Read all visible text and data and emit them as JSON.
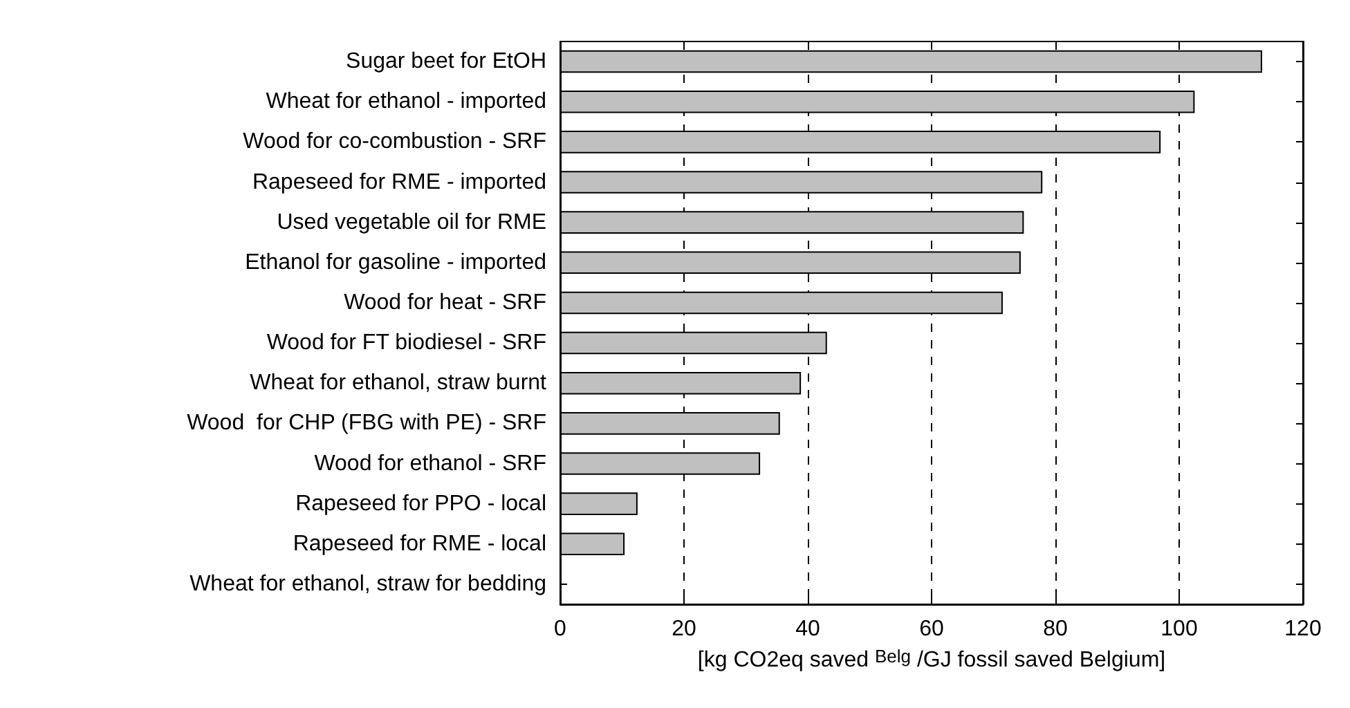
{
  "chart_data": {
    "type": "bar",
    "orientation": "horizontal",
    "xlabel": "[kg CO2eq saved $^{Belg}$ /GJ fossil saved Belgium]",
    "categories": [
      "Sugar beet for EtOH",
      "Wheat for ethanol - imported",
      "Wood for co-combustion - SRF",
      "Rapeseed for RME - imported",
      "Used vegetable oil for RME",
      "Ethanol for gasoline - imported",
      "Wood for heat - SRF",
      "Wood for FT biodiesel - SRF",
      "Wheat for ethanol, straw burnt",
      "Wood  for CHP (FBG with PE) - SRF",
      "Wood for ethanol - SRF",
      "Rapeseed for PPO - local",
      "Rapeseed for RME - local",
      "Wheat for ethanol, straw for bedding"
    ],
    "values": [
      113.4,
      102.5,
      97,
      77.9,
      74.9,
      74.4,
      71.5,
      43.1,
      38.9,
      35.5,
      32.3,
      12.5,
      10.4,
      0
    ],
    "color": "#c0c0c0",
    "xlim": [
      0,
      120
    ],
    "xticks": [
      0,
      20,
      40,
      60,
      80,
      100,
      120
    ],
    "grid": "x",
    "line_style": "dashed"
  }
}
